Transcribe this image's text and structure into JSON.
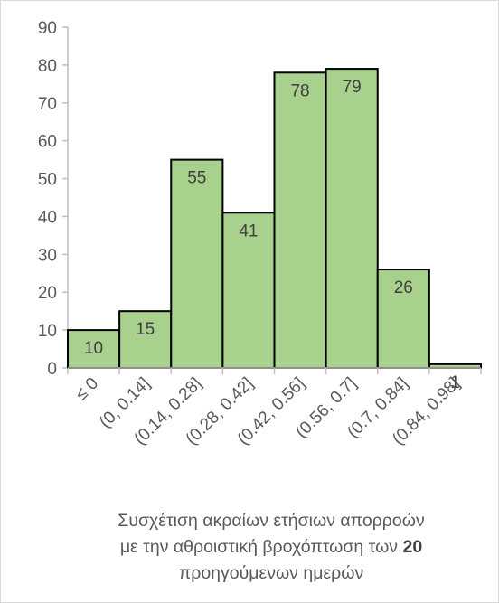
{
  "chart_data": {
    "type": "bar",
    "categories": [
      "≤ 0",
      "(0, 0.14]",
      "(0.14, 0.28]",
      "(0.28, 0.42]",
      "(0.42, 0.56]",
      "(0.56, 0.7]",
      "(0.7, 0.84]",
      "(0.84, 0.98]"
    ],
    "values": [
      10,
      15,
      55,
      41,
      78,
      79,
      26,
      1
    ],
    "data_labels": [
      "10",
      "15",
      "55",
      "41",
      "78",
      "79",
      "26",
      "1"
    ],
    "title": "",
    "xlabel": {
      "line1": "Συσχέτιση ακραίων ετήσιων απορροών",
      "line2_prefix": "με την αθροιστική βροχόπτωση των ",
      "line2_bold": "20",
      "line3": "προηγούμενων ημερών"
    },
    "ylabel": "",
    "ylim": [
      0,
      90
    ],
    "yticks": [
      0,
      10,
      20,
      30,
      40,
      50,
      60,
      70,
      80,
      90
    ],
    "grid": false,
    "legend": "none",
    "colors": {
      "bar_fill": "#a9d18e",
      "bar_stroke": "#000000",
      "axis": "#bfbfbf",
      "text": "#595959"
    }
  }
}
